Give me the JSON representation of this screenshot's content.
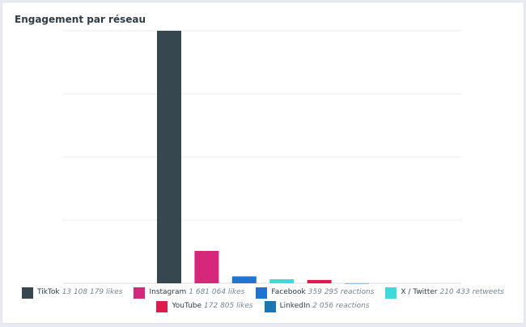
{
  "page_title": "Engagement par réseau",
  "chart_data": {
    "type": "bar",
    "title": "Engagement par réseau",
    "xlabel": "",
    "ylabel": "",
    "ylim": [
      0,
      13108179
    ],
    "grid": true,
    "legend_position": "bottom",
    "categories": [
      "TikTok",
      "Instagram",
      "Facebook",
      "X / Twitter",
      "YouTube",
      "LinkedIn"
    ],
    "values": [
      13108179,
      1681064,
      359295,
      210433,
      172805,
      2056
    ],
    "colors": [
      "#37474f",
      "#d6287a",
      "#1e74d0",
      "#3dd9dc",
      "#df1a4d",
      "#1b74b3"
    ],
    "value_labels": [
      "13 108 179 likes",
      "1 681 064 likes",
      "359 295 reactions",
      "210 433 retweets",
      "172 805 likes",
      "2 056 reactions"
    ]
  },
  "legend": {
    "rows": [
      [
        {
          "name": "TikTok",
          "value": "13 108 179 likes",
          "color": "#37474f"
        },
        {
          "name": "Instagram",
          "value": "1 681 064 likes",
          "color": "#d6287a"
        },
        {
          "name": "Facebook",
          "value": "359 295 reactions",
          "color": "#1e74d0"
        },
        {
          "name": "X / Twitter",
          "value": "210 433 retweets",
          "color": "#3dd9dc"
        }
      ],
      [
        {
          "name": "YouTube",
          "value": "172 805 likes",
          "color": "#df1a4d"
        },
        {
          "name": "LinkedIn",
          "value": "2 056 reactions",
          "color": "#1b74b3"
        }
      ]
    ]
  }
}
